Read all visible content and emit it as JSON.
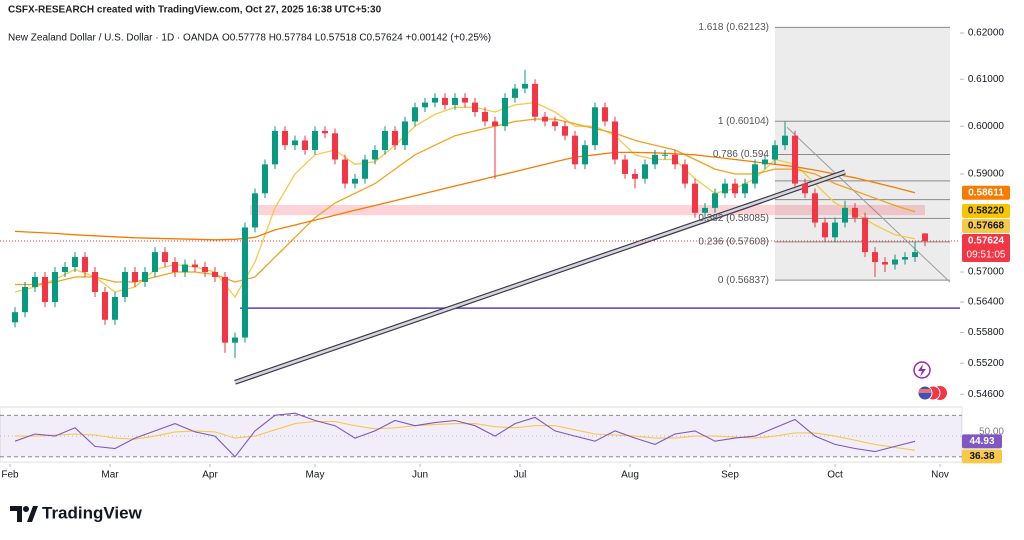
{
  "header": {
    "credit": "CSFX-RESEARCH created with TradingView.com, Oct 27, 2025 16:38 UTC+5:30",
    "symbol": "New Zealand Dollar / U.S. Dollar · 1D · OANDA",
    "quote": "O0.57778 H0.57784 L0.57518 C0.57624 +0.00142 (+0.25%)"
  },
  "footer": {
    "brand": "TradingView"
  },
  "chart_data": {
    "type": "candlestick",
    "log_scale": true,
    "up_color": "#089981",
    "down_color": "#f23645",
    "xlim": [
      -1,
      191
    ],
    "ylim": [
      0.5449,
      0.6224
    ],
    "xticks": [
      {
        "value": 1,
        "label": "Feb"
      },
      {
        "value": 21,
        "label": "Mar"
      },
      {
        "value": 41,
        "label": "Apr"
      },
      {
        "value": 62,
        "label": "May"
      },
      {
        "value": 83,
        "label": "Jun"
      },
      {
        "value": 103,
        "label": "Jul"
      },
      {
        "value": 125,
        "label": "Aug"
      },
      {
        "value": 145,
        "label": "Sep"
      },
      {
        "value": 166,
        "label": "Oct"
      },
      {
        "value": 187,
        "label": "Nov"
      }
    ],
    "yticks": [
      {
        "value": 0.62,
        "label": "0.62000"
      },
      {
        "value": 0.61,
        "label": "0.61000"
      },
      {
        "value": 0.6,
        "label": "0.60000"
      },
      {
        "value": 0.59,
        "label": "0.59000"
      },
      {
        "value": 0.57,
        "label": "0.57000"
      },
      {
        "value": 0.564,
        "label": "0.56400"
      },
      {
        "value": 0.558,
        "label": "0.55800"
      },
      {
        "value": 0.552,
        "label": "0.55200"
      },
      {
        "value": 0.546,
        "label": "0.54600"
      }
    ],
    "x": [
      2,
      4,
      6,
      8,
      10,
      12,
      14,
      16,
      18,
      20,
      22,
      24,
      26,
      28,
      30,
      32,
      34,
      36,
      38,
      40,
      42,
      44,
      46,
      48,
      50,
      52,
      54,
      56,
      58,
      60,
      62,
      64,
      66,
      68,
      70,
      72,
      74,
      76,
      78,
      80,
      82,
      84,
      86,
      88,
      90,
      92,
      94,
      96,
      98,
      100,
      102,
      104,
      106,
      108,
      110,
      112,
      114,
      116,
      118,
      120,
      122,
      124,
      126,
      128,
      130,
      132,
      134,
      136,
      138,
      140,
      142,
      144,
      146,
      148,
      150,
      152,
      154,
      156,
      158,
      160,
      162,
      164,
      166,
      168,
      170,
      172,
      174,
      176,
      178,
      180,
      182,
      184
    ],
    "ohlc": [
      [
        0.56,
        0.563,
        0.559,
        0.562
      ],
      [
        0.562,
        0.568,
        0.561,
        0.567
      ],
      [
        0.567,
        0.57,
        0.566,
        0.569
      ],
      [
        0.569,
        0.57,
        0.563,
        0.564
      ],
      [
        0.564,
        0.571,
        0.563,
        0.57
      ],
      [
        0.57,
        0.572,
        0.569,
        0.571
      ],
      [
        0.571,
        0.574,
        0.57,
        0.573
      ],
      [
        0.573,
        0.574,
        0.569,
        0.57
      ],
      [
        0.57,
        0.571,
        0.565,
        0.566
      ],
      [
        0.566,
        0.567,
        0.5595,
        0.5605
      ],
      [
        0.5605,
        0.566,
        0.5595,
        0.565
      ],
      [
        0.565,
        0.571,
        0.564,
        0.57
      ],
      [
        0.57,
        0.571,
        0.567,
        0.568
      ],
      [
        0.568,
        0.571,
        0.567,
        0.57
      ],
      [
        0.57,
        0.575,
        0.569,
        0.574
      ],
      [
        0.574,
        0.575,
        0.571,
        0.572
      ],
      [
        0.572,
        0.573,
        0.569,
        0.57
      ],
      [
        0.57,
        0.5725,
        0.569,
        0.5715
      ],
      [
        0.5715,
        0.5725,
        0.57,
        0.571
      ],
      [
        0.571,
        0.572,
        0.569,
        0.57
      ],
      [
        0.57,
        0.571,
        0.568,
        0.569
      ],
      [
        0.569,
        0.57,
        0.554,
        0.556
      ],
      [
        0.556,
        0.558,
        0.553,
        0.557
      ],
      [
        0.557,
        0.58,
        0.556,
        0.579
      ],
      [
        0.579,
        0.587,
        0.578,
        0.586
      ],
      [
        0.586,
        0.593,
        0.585,
        0.592
      ],
      [
        0.592,
        0.6,
        0.591,
        0.599
      ],
      [
        0.599,
        0.6,
        0.595,
        0.596
      ],
      [
        0.596,
        0.598,
        0.595,
        0.597
      ],
      [
        0.597,
        0.598,
        0.594,
        0.595
      ],
      [
        0.595,
        0.6,
        0.594,
        0.599
      ],
      [
        0.599,
        0.6,
        0.5975,
        0.5985
      ],
      [
        0.5985,
        0.5995,
        0.592,
        0.593
      ],
      [
        0.593,
        0.594,
        0.587,
        0.588
      ],
      [
        0.588,
        0.59,
        0.587,
        0.589
      ],
      [
        0.589,
        0.594,
        0.588,
        0.593
      ],
      [
        0.593,
        0.596,
        0.592,
        0.595
      ],
      [
        0.595,
        0.6,
        0.594,
        0.599
      ],
      [
        0.599,
        0.6,
        0.595,
        0.596
      ],
      [
        0.596,
        0.602,
        0.595,
        0.601
      ],
      [
        0.601,
        0.605,
        0.6,
        0.604
      ],
      [
        0.604,
        0.606,
        0.603,
        0.605
      ],
      [
        0.605,
        0.607,
        0.604,
        0.606
      ],
      [
        0.606,
        0.607,
        0.6035,
        0.6045
      ],
      [
        0.6045,
        0.607,
        0.6035,
        0.606
      ],
      [
        0.606,
        0.607,
        0.604,
        0.605
      ],
      [
        0.605,
        0.606,
        0.602,
        0.603
      ],
      [
        0.603,
        0.604,
        0.6,
        0.601
      ],
      [
        0.601,
        0.602,
        0.589,
        0.6
      ],
      [
        0.6,
        0.607,
        0.599,
        0.606
      ],
      [
        0.606,
        0.609,
        0.605,
        0.608
      ],
      [
        0.608,
        0.612,
        0.607,
        0.609
      ],
      [
        0.609,
        0.61,
        0.601,
        0.602
      ],
      [
        0.602,
        0.603,
        0.6,
        0.601
      ],
      [
        0.601,
        0.602,
        0.599,
        0.6
      ],
      [
        0.6,
        0.601,
        0.597,
        0.598
      ],
      [
        0.598,
        0.599,
        0.591,
        0.592
      ],
      [
        0.592,
        0.597,
        0.591,
        0.596
      ],
      [
        0.596,
        0.605,
        0.595,
        0.604
      ],
      [
        0.604,
        0.605,
        0.6,
        0.601
      ],
      [
        0.601,
        0.602,
        0.592,
        0.593
      ],
      [
        0.593,
        0.594,
        0.589,
        0.59
      ],
      [
        0.59,
        0.591,
        0.587,
        0.589
      ],
      [
        0.589,
        0.593,
        0.588,
        0.592
      ],
      [
        0.592,
        0.595,
        0.591,
        0.594
      ],
      [
        0.594,
        0.595,
        0.593,
        0.594
      ],
      [
        0.594,
        0.595,
        0.591,
        0.592
      ],
      [
        0.592,
        0.593,
        0.587,
        0.588
      ],
      [
        0.588,
        0.589,
        0.581,
        0.582
      ],
      [
        0.582,
        0.584,
        0.581,
        0.583
      ],
      [
        0.583,
        0.587,
        0.582,
        0.586
      ],
      [
        0.586,
        0.589,
        0.585,
        0.588
      ],
      [
        0.588,
        0.589,
        0.585,
        0.586
      ],
      [
        0.586,
        0.589,
        0.585,
        0.588
      ],
      [
        0.588,
        0.593,
        0.587,
        0.592
      ],
      [
        0.592,
        0.594,
        0.591,
        0.593
      ],
      [
        0.593,
        0.597,
        0.592,
        0.596
      ],
      [
        0.596,
        0.601,
        0.595,
        0.598
      ],
      [
        0.598,
        0.599,
        0.587,
        0.588
      ],
      [
        0.588,
        0.589,
        0.585,
        0.586
      ],
      [
        0.586,
        0.587,
        0.579,
        0.58
      ],
      [
        0.58,
        0.581,
        0.576,
        0.577
      ],
      [
        0.577,
        0.581,
        0.576,
        0.58
      ],
      [
        0.58,
        0.5845,
        0.579,
        0.583
      ],
      [
        0.583,
        0.584,
        0.58,
        0.581
      ],
      [
        0.581,
        0.582,
        0.573,
        0.574
      ],
      [
        0.574,
        0.575,
        0.569,
        0.572
      ],
      [
        0.572,
        0.573,
        0.57,
        0.5715
      ],
      [
        0.5715,
        0.5735,
        0.5705,
        0.5725
      ],
      [
        0.5725,
        0.574,
        0.5715,
        0.573
      ],
      [
        0.573,
        0.576,
        0.572,
        0.574
      ],
      [
        0.57778,
        0.57784,
        0.57518,
        0.57624
      ]
    ],
    "ma_x": [
      2,
      6,
      10,
      14,
      18,
      22,
      26,
      30,
      34,
      38,
      42,
      46,
      50,
      54,
      58,
      62,
      66,
      70,
      74,
      78,
      82,
      86,
      90,
      94,
      98,
      102,
      106,
      110,
      114,
      118,
      122,
      126,
      130,
      134,
      138,
      142,
      146,
      150,
      154,
      158,
      162,
      166,
      170,
      174,
      178,
      182
    ],
    "moving_averages": [
      {
        "color": "#f7c948",
        "values": [
          0.566,
          0.567,
          0.5685,
          0.5705,
          0.569,
          0.566,
          0.567,
          0.5705,
          0.5715,
          0.571,
          0.57,
          0.565,
          0.572,
          0.583,
          0.59,
          0.594,
          0.595,
          0.592,
          0.5925,
          0.596,
          0.6,
          0.6025,
          0.604,
          0.604,
          0.603,
          0.6045,
          0.605,
          0.603,
          0.6,
          0.6,
          0.598,
          0.594,
          0.593,
          0.593,
          0.589,
          0.586,
          0.587,
          0.589,
          0.593,
          0.592,
          0.588,
          0.584,
          0.582,
          0.5795,
          0.5775,
          0.5767
        ]
      },
      {
        "color": "#f0a21e",
        "values": [
          0.5675,
          0.5675,
          0.568,
          0.569,
          0.569,
          0.568,
          0.568,
          0.569,
          0.57,
          0.57,
          0.5695,
          0.568,
          0.569,
          0.573,
          0.577,
          0.581,
          0.584,
          0.586,
          0.588,
          0.591,
          0.594,
          0.596,
          0.598,
          0.599,
          0.6,
          0.601,
          0.6015,
          0.6015,
          0.6005,
          0.5995,
          0.5985,
          0.597,
          0.596,
          0.595,
          0.593,
          0.591,
          0.59,
          0.59,
          0.591,
          0.591,
          0.59,
          0.588,
          0.5865,
          0.585,
          0.5835,
          0.5822
        ]
      },
      {
        "color": "#f57c00",
        "values": [
          0.5782,
          0.578,
          0.5778,
          0.5775,
          0.5773,
          0.5771,
          0.5769,
          0.5768,
          0.5767,
          0.5766,
          0.5765,
          0.5766,
          0.577,
          0.5785,
          0.5795,
          0.5805,
          0.5815,
          0.5825,
          0.5835,
          0.5845,
          0.5855,
          0.5865,
          0.5875,
          0.5885,
          0.5895,
          0.5905,
          0.5915,
          0.5925,
          0.5935,
          0.594,
          0.5945,
          0.5945,
          0.5944,
          0.5942,
          0.594,
          0.5935,
          0.593,
          0.5925,
          0.592,
          0.5915,
          0.5908,
          0.59,
          0.5892,
          0.5882,
          0.5872,
          0.5861
        ]
      }
    ],
    "price_labels": [
      {
        "value": 0.58611,
        "label": "0.58611",
        "color": "#f57c00"
      },
      {
        "value": 0.5822,
        "label": "0.58220",
        "color": "#f7c600"
      },
      {
        "value": 0.57668,
        "label": "0.57668",
        "color": "#f7c948"
      },
      {
        "value": 0.57624,
        "label": "0.57624",
        "color": "#f23645",
        "countdown": "09:51:05"
      }
    ],
    "fib": {
      "x": [
        154,
        189
      ],
      "levels": [
        {
          "price": 0.62123,
          "label": "1.618 (0.62123)"
        },
        {
          "price": 0.60104,
          "label": "1 (0.60104)"
        },
        {
          "price": 0.59405,
          "label": "0.786 (0.594"
        },
        {
          "price": 0.58856
        },
        {
          "price": 0.58471
        },
        {
          "price": 0.58085,
          "label": "0.382 (0.58085)"
        },
        {
          "price": 0.57608,
          "label": "0.236 (0.57608)"
        },
        {
          "price": 0.56837,
          "label": "0 (0.56837)"
        }
      ]
    },
    "trendline": {
      "x": [
        46,
        168
      ],
      "y": [
        0.5483,
        0.5904
      ]
    },
    "support": {
      "x": [
        47,
        191
      ],
      "y": 0.5628,
      "color": "#5b3cc4"
    },
    "zone": {
      "x": [
        49,
        184
      ],
      "y": [
        0.5815,
        0.5836
      ]
    },
    "rsi": {
      "ylim": [
        25,
        78
      ],
      "levels": [
        70,
        30
      ],
      "yticks": [
        {
          "value": 50,
          "label": "50.00"
        }
      ],
      "color": "#7e57c2",
      "ma_color": "#f7c948",
      "values": [
        45,
        52,
        50,
        58,
        40,
        38,
        48,
        55,
        62,
        54,
        50,
        30,
        55,
        70,
        72,
        65,
        60,
        48,
        55,
        65,
        60,
        63,
        65,
        60,
        50,
        62,
        68,
        55,
        50,
        45,
        55,
        48,
        42,
        52,
        55,
        45,
        48,
        50,
        58,
        66,
        50,
        42,
        38,
        35,
        40,
        44.93
      ],
      "ma_values": [
        50,
        50,
        51,
        52,
        51,
        48,
        47,
        50,
        54,
        55,
        54,
        48,
        50,
        56,
        62,
        64,
        64,
        60,
        57,
        58,
        60,
        61,
        62,
        62,
        59,
        58,
        60,
        60,
        56,
        52,
        51,
        50,
        48,
        48,
        50,
        50,
        49,
        48,
        50,
        53,
        53,
        50,
        46,
        42,
        39,
        36.38
      ]
    }
  }
}
